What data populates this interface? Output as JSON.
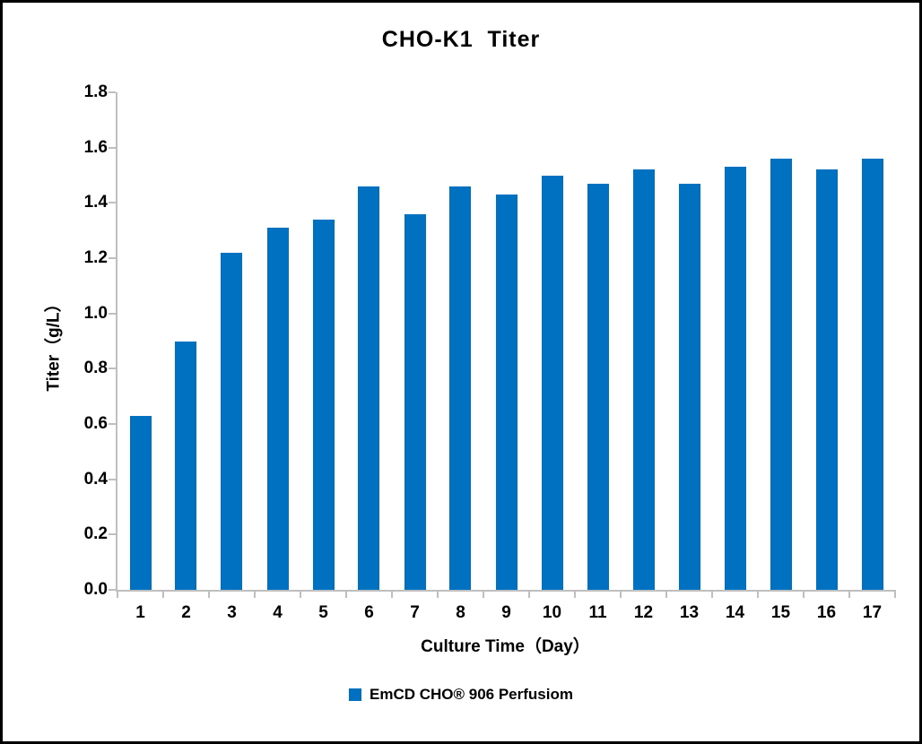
{
  "frame": {
    "background": "#FFFFFF",
    "border_color": "#000000",
    "text_color": "#000000"
  },
  "chart_data": {
    "type": "bar",
    "title": "CHO-K1  Titer",
    "xlabel": "Culture Time（Day）",
    "ylabel": "Titer（g/L）",
    "categories": [
      "1",
      "2",
      "3",
      "4",
      "5",
      "6",
      "7",
      "8",
      "9",
      "10",
      "11",
      "12",
      "13",
      "14",
      "15",
      "16",
      "17"
    ],
    "series": [
      {
        "name": "EmCD CHO® 906 Perfusiom",
        "color": "#0070C0",
        "values": [
          0.63,
          0.9,
          1.22,
          1.31,
          1.34,
          1.46,
          1.36,
          1.46,
          1.43,
          1.5,
          1.47,
          1.52,
          1.47,
          1.53,
          1.56,
          1.52,
          1.56
        ]
      }
    ],
    "ylim": [
      0,
      1.8
    ],
    "yticks": [
      "0.0",
      "0.2",
      "0.4",
      "0.6",
      "0.8",
      "1.0",
      "1.2",
      "1.4",
      "1.6",
      "1.8"
    ],
    "grid": false,
    "legend_position": "bottom",
    "axis_color": "#BFBFBF"
  }
}
